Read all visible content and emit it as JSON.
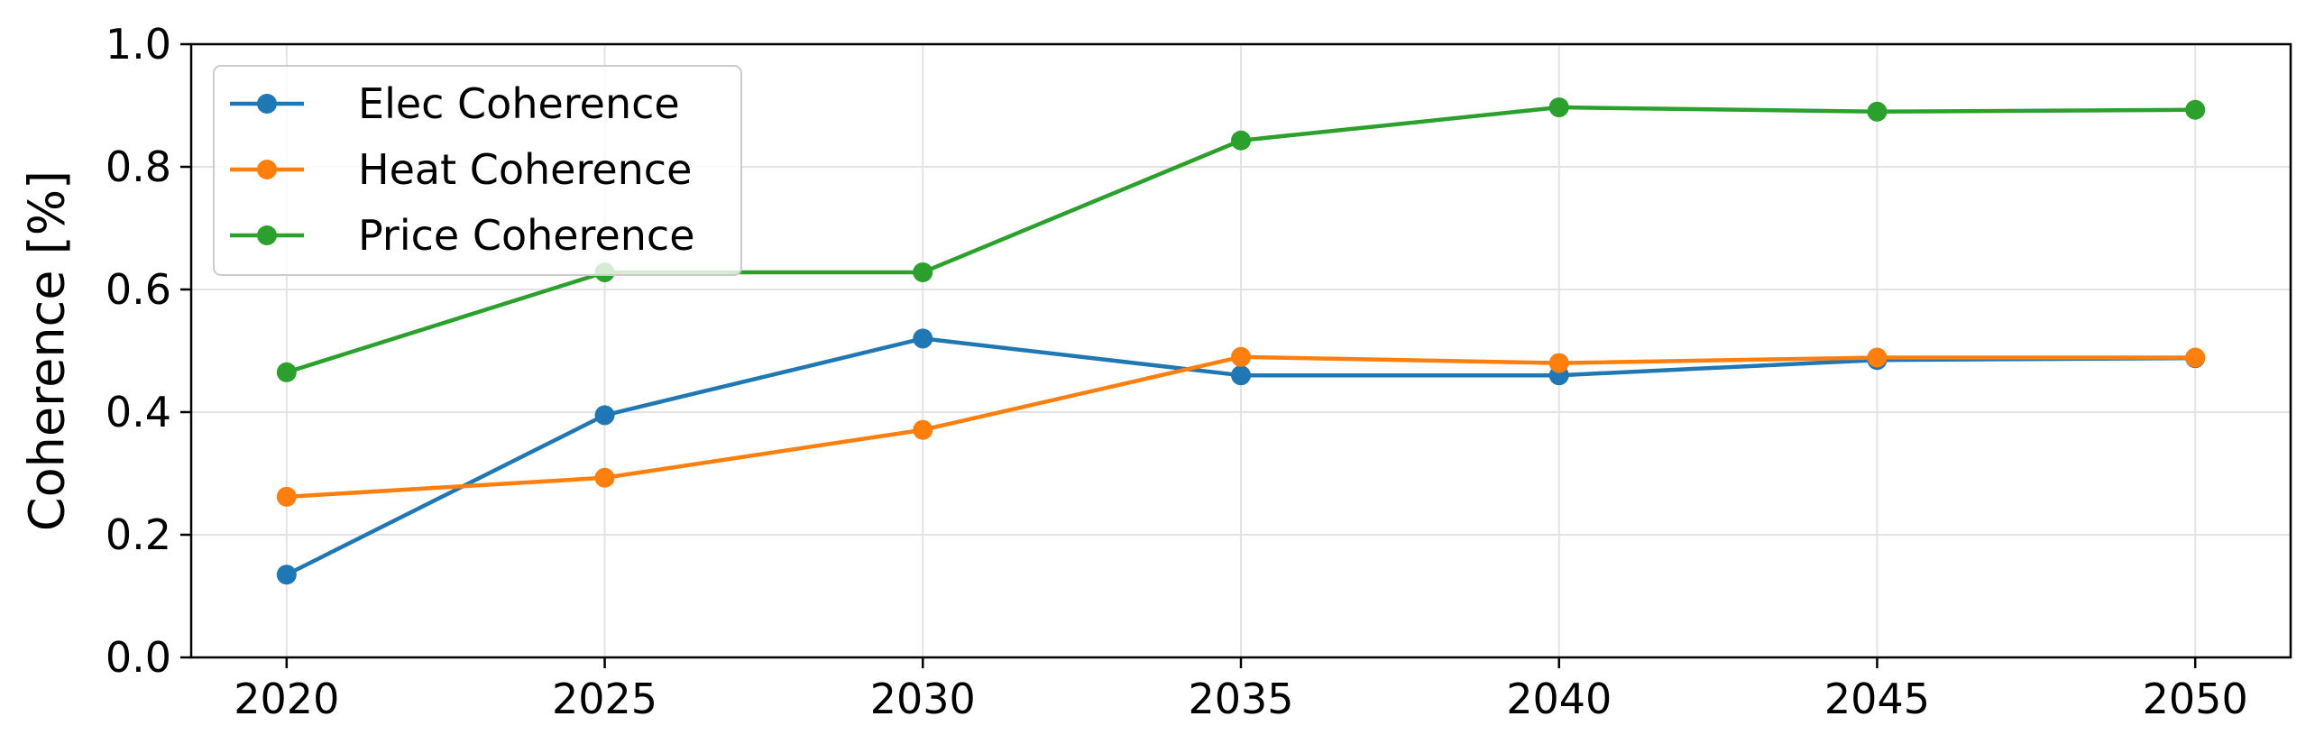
{
  "chart_data": {
    "type": "line",
    "title": "",
    "xlabel": "",
    "ylabel": "Coherence [%]",
    "x": [
      2020,
      2025,
      2030,
      2035,
      2040,
      2045,
      2050
    ],
    "xlim": [
      2018.5,
      2051.5
    ],
    "ylim": [
      0.0,
      1.0
    ],
    "xticks": [
      "2020",
      "2025",
      "2030",
      "2035",
      "2040",
      "2045",
      "2050"
    ],
    "yticks": [
      "0.0",
      "0.2",
      "0.4",
      "0.6",
      "0.8",
      "1.0"
    ],
    "grid": true,
    "legend_position": "upper-left",
    "series": [
      {
        "name": "Elec Coherence",
        "color": "#1f77b4",
        "values": [
          0.135,
          0.395,
          0.52,
          0.46,
          0.46,
          0.485,
          0.488
        ]
      },
      {
        "name": "Heat Coherence",
        "color": "#ff7f0e",
        "values": [
          0.262,
          0.293,
          0.371,
          0.49,
          0.48,
          0.489,
          0.489
        ]
      },
      {
        "name": "Price Coherence",
        "color": "#2ca02c",
        "values": [
          0.465,
          0.628,
          0.628,
          0.843,
          0.897,
          0.89,
          0.893
        ]
      }
    ]
  }
}
